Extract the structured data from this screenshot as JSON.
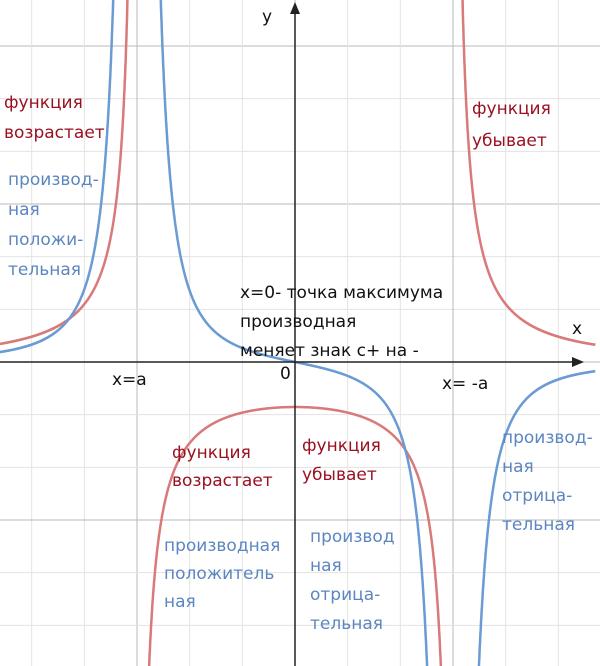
{
  "axes": {
    "x": "x",
    "y": "y",
    "origin": "0",
    "left_asymptote": "x=a",
    "right_asymptote": "x= -a"
  },
  "notes": {
    "left_function": [
      "функция",
      "возрастает"
    ],
    "left_derivative": [
      "производ-",
      "ная",
      "положи-",
      "тельная"
    ],
    "right_function": [
      "функция",
      "убывает"
    ],
    "maximum": [
      "x=0- точка максимума",
      "производная",
      "меняет знак с+ на -"
    ],
    "mid_left_function": [
      "функция",
      "возрастает"
    ],
    "mid_right_function": [
      "функция",
      "убывает"
    ],
    "mid_left_derivative": [
      "производная",
      "положитель",
      "ная"
    ],
    "mid_right_derivative": [
      "производ",
      "ная",
      "отрица-",
      "тельная"
    ],
    "far_right_derivative": [
      "производ-",
      "ная",
      "отрица-",
      "тельная"
    ]
  }
}
